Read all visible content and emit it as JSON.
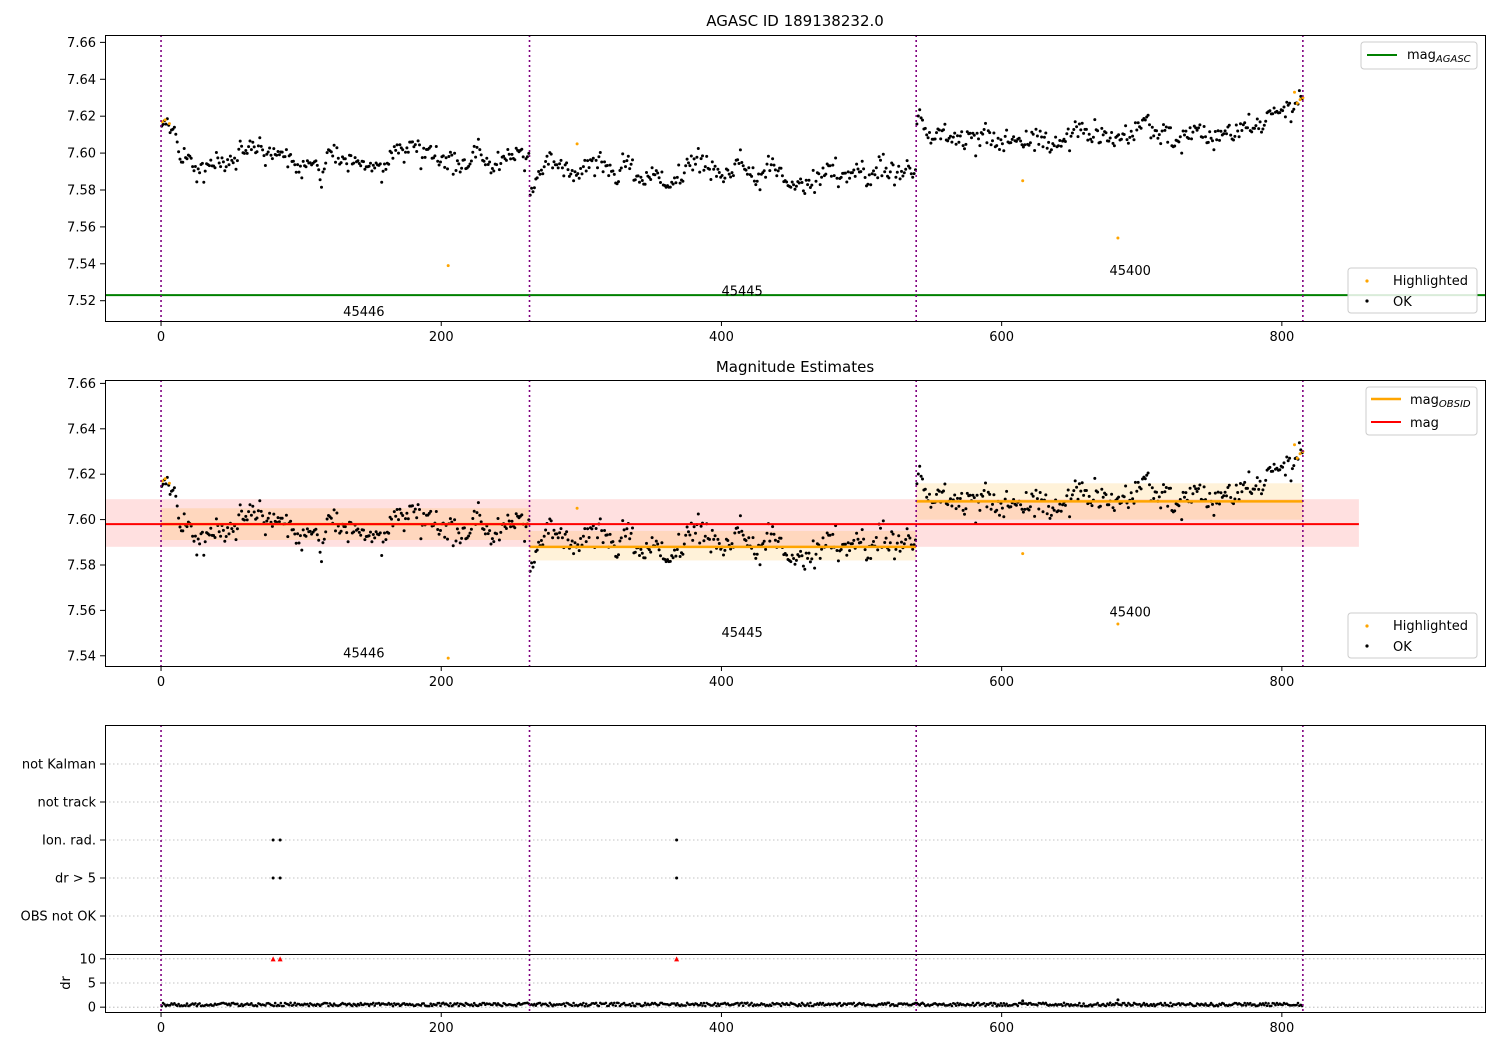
{
  "chart_data": [
    {
      "type": "scatter",
      "title": "AGASC ID 189138232.0",
      "xlabel": "",
      "ylabel": "",
      "xlim": [
        -40,
        945
      ],
      "ylim": [
        7.509,
        7.664
      ],
      "x_ticks": [
        0,
        200,
        400,
        600,
        800
      ],
      "x_tick_labels": [
        "0",
        "200",
        "400",
        "600",
        "800"
      ],
      "y_ticks": [
        7.52,
        7.54,
        7.56,
        7.58,
        7.6,
        7.62,
        7.64,
        7.66
      ],
      "y_tick_labels": [
        "7.52",
        "7.54",
        "7.56",
        "7.58",
        "7.60",
        "7.62",
        "7.64",
        "7.66"
      ],
      "obsid_boundaries": [
        0,
        263,
        539,
        815
      ],
      "obsid_labels": [
        {
          "text": "45446",
          "x": 130,
          "y": 7.514
        },
        {
          "text": "45445",
          "x": 400,
          "y": 7.525
        },
        {
          "text": "45400",
          "x": 677,
          "y": 7.536
        }
      ],
      "mag_agasc": 7.523,
      "mag_agasc_color": "#008000",
      "segments": [
        {
          "x_start": 0,
          "x_end": 263,
          "level": 7.598,
          "spread": 0.0065,
          "start_level": 7.612
        },
        {
          "x_start": 263,
          "x_end": 539,
          "level": 7.588,
          "spread": 0.0065,
          "start_level": 7.576
        },
        {
          "x_start": 539,
          "x_end": 815,
          "level": 7.608,
          "spread": 0.0065,
          "start_level": 7.617
        }
      ],
      "trend_end": [
        {
          "x": 815,
          "y": 7.626
        }
      ],
      "highlighted": [
        {
          "x": 1,
          "y": 7.617
        },
        {
          "x": 3,
          "y": 7.618
        },
        {
          "x": 6,
          "y": 7.616
        },
        {
          "x": 205,
          "y": 7.539
        },
        {
          "x": 297,
          "y": 7.605
        },
        {
          "x": 615,
          "y": 7.585
        },
        {
          "x": 683,
          "y": 7.554
        },
        {
          "x": 809,
          "y": 7.633
        },
        {
          "x": 811,
          "y": 7.627
        },
        {
          "x": 813,
          "y": 7.629
        },
        {
          "x": 815,
          "y": 7.63
        }
      ],
      "legend_upper": [
        {
          "label": "mag",
          "subscript": "AGASC",
          "color": "#008000",
          "kind": "line"
        }
      ],
      "legend_lower": [
        {
          "label": "Highlighted",
          "color": "#ffa500",
          "kind": "point"
        },
        {
          "label": "OK",
          "color": "#000000",
          "kind": "point"
        }
      ],
      "legend_upper_position": "top-right",
      "legend_lower_position": "bottom-right",
      "grid": false
    },
    {
      "type": "scatter",
      "title": "Magnitude Estimates",
      "xlabel": "",
      "ylabel": "",
      "xlim": [
        -40,
        945
      ],
      "ylim": [
        7.5355,
        7.6615
      ],
      "x_ticks": [
        0,
        200,
        400,
        600,
        800
      ],
      "x_tick_labels": [
        "0",
        "200",
        "400",
        "600",
        "800"
      ],
      "y_ticks": [
        7.54,
        7.56,
        7.58,
        7.6,
        7.62,
        7.64,
        7.66
      ],
      "y_tick_labels": [
        "7.54",
        "7.56",
        "7.58",
        "7.60",
        "7.62",
        "7.64",
        "7.66"
      ],
      "obsid_labels": [
        {
          "text": "45446",
          "x": 130,
          "y": 7.541
        },
        {
          "text": "45445",
          "x": 400,
          "y": 7.55
        },
        {
          "text": "45400",
          "x": 677,
          "y": 7.559
        }
      ],
      "mag": 7.598,
      "mag_band": [
        7.588,
        7.609
      ],
      "mag_range_x": [
        -40,
        855
      ],
      "mag_obsid": [
        {
          "x_start": 0,
          "x_end": 263,
          "value": 7.598,
          "band": [
            7.591,
            7.605
          ]
        },
        {
          "x_start": 263,
          "x_end": 539,
          "value": 7.588,
          "band": [
            7.582,
            7.595
          ]
        },
        {
          "x_start": 539,
          "x_end": 815,
          "value": 7.608,
          "band": [
            7.6,
            7.616
          ]
        }
      ],
      "legend_upper": [
        {
          "label": "mag",
          "subscript": "OBSID",
          "color": "#ffa500",
          "kind": "line"
        },
        {
          "label": "mag",
          "subscript": "",
          "color": "#ff0000",
          "kind": "line"
        }
      ],
      "legend_lower": [
        {
          "label": "Highlighted",
          "color": "#ffa500",
          "kind": "point"
        },
        {
          "label": "OK",
          "color": "#000000",
          "kind": "point"
        }
      ],
      "legend_upper_position": "top-right",
      "legend_lower_position": "bottom-right",
      "grid": false
    },
    {
      "type": "scatter",
      "title": "",
      "xlabel": "",
      "ylabel": "",
      "xlim": [
        -40,
        945
      ],
      "categories": [
        "OBS not OK",
        "dr > 5",
        "Ion. rad.",
        "not track",
        "not Kalman"
      ],
      "flags": [
        {
          "category": "Ion. rad.",
          "x": [
            80,
            85,
            368
          ]
        },
        {
          "category": "dr > 5",
          "x": [
            80,
            85,
            368
          ]
        }
      ],
      "grid": true
    },
    {
      "type": "scatter",
      "title": "",
      "xlabel": "",
      "ylabel": "dr",
      "xlim": [
        -40,
        945
      ],
      "ylim": [
        -1,
        11
      ],
      "x_ticks": [
        0,
        200,
        400,
        600,
        800
      ],
      "x_tick_labels": [
        "0",
        "200",
        "400",
        "600",
        "800"
      ],
      "y_ticks": [
        0,
        5,
        10
      ],
      "y_tick_labels": [
        "0",
        "5",
        "10"
      ],
      "dr_clip_markers": [
        {
          "x": 80,
          "y": 10
        },
        {
          "x": 85,
          "y": 10
        },
        {
          "x": 368,
          "y": 10
        }
      ],
      "dr_outliers": [
        {
          "x": 615,
          "y": 1.3
        },
        {
          "x": 683,
          "y": 1.5
        }
      ],
      "dr_typical": [
        0.2,
        0.9
      ],
      "grid": true
    }
  ],
  "colors": {
    "ok": "#000000",
    "highlighted": "#ffa500",
    "obsid_boundary": "#800080",
    "mag": "#ff0000",
    "mag_obsid": "#ffa500",
    "mag_agasc": "#008000",
    "dr_clip": "#ff0000"
  }
}
